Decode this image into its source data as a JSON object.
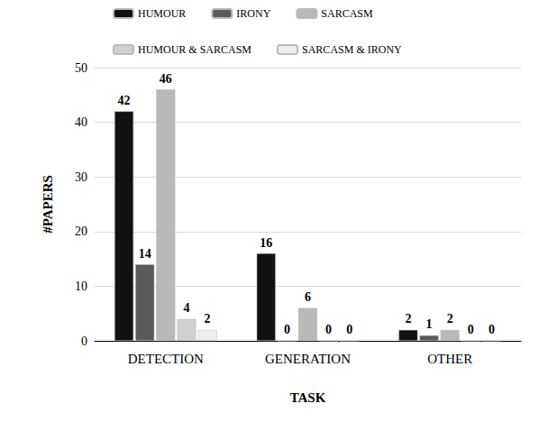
{
  "chart_data": {
    "type": "bar",
    "x_label": "TASK",
    "y_label": "#PAPERS",
    "categories": [
      "DETECTION",
      "GENERATION",
      "OTHER"
    ],
    "series": [
      {
        "name": "HUMOUR",
        "color": "#111111",
        "values": [
          42,
          16,
          2
        ]
      },
      {
        "name": "IRONY",
        "color": "#5a5a5a",
        "values": [
          14,
          0,
          1
        ]
      },
      {
        "name": "SARCASM",
        "color": "#b8b8b8",
        "values": [
          46,
          6,
          2
        ]
      },
      {
        "name": "HUMOUR & SARCASM",
        "color": "#d0d0d0",
        "values": [
          4,
          0,
          0
        ]
      },
      {
        "name": "SARCASM & IRONY",
        "color": "#eeeeee",
        "values": [
          2,
          0,
          0
        ]
      }
    ],
    "ylim": [
      0,
      50
    ],
    "yticks": [
      0,
      10,
      20,
      30,
      40,
      50
    ],
    "grid": true,
    "legend": "top",
    "data_labels": true
  }
}
